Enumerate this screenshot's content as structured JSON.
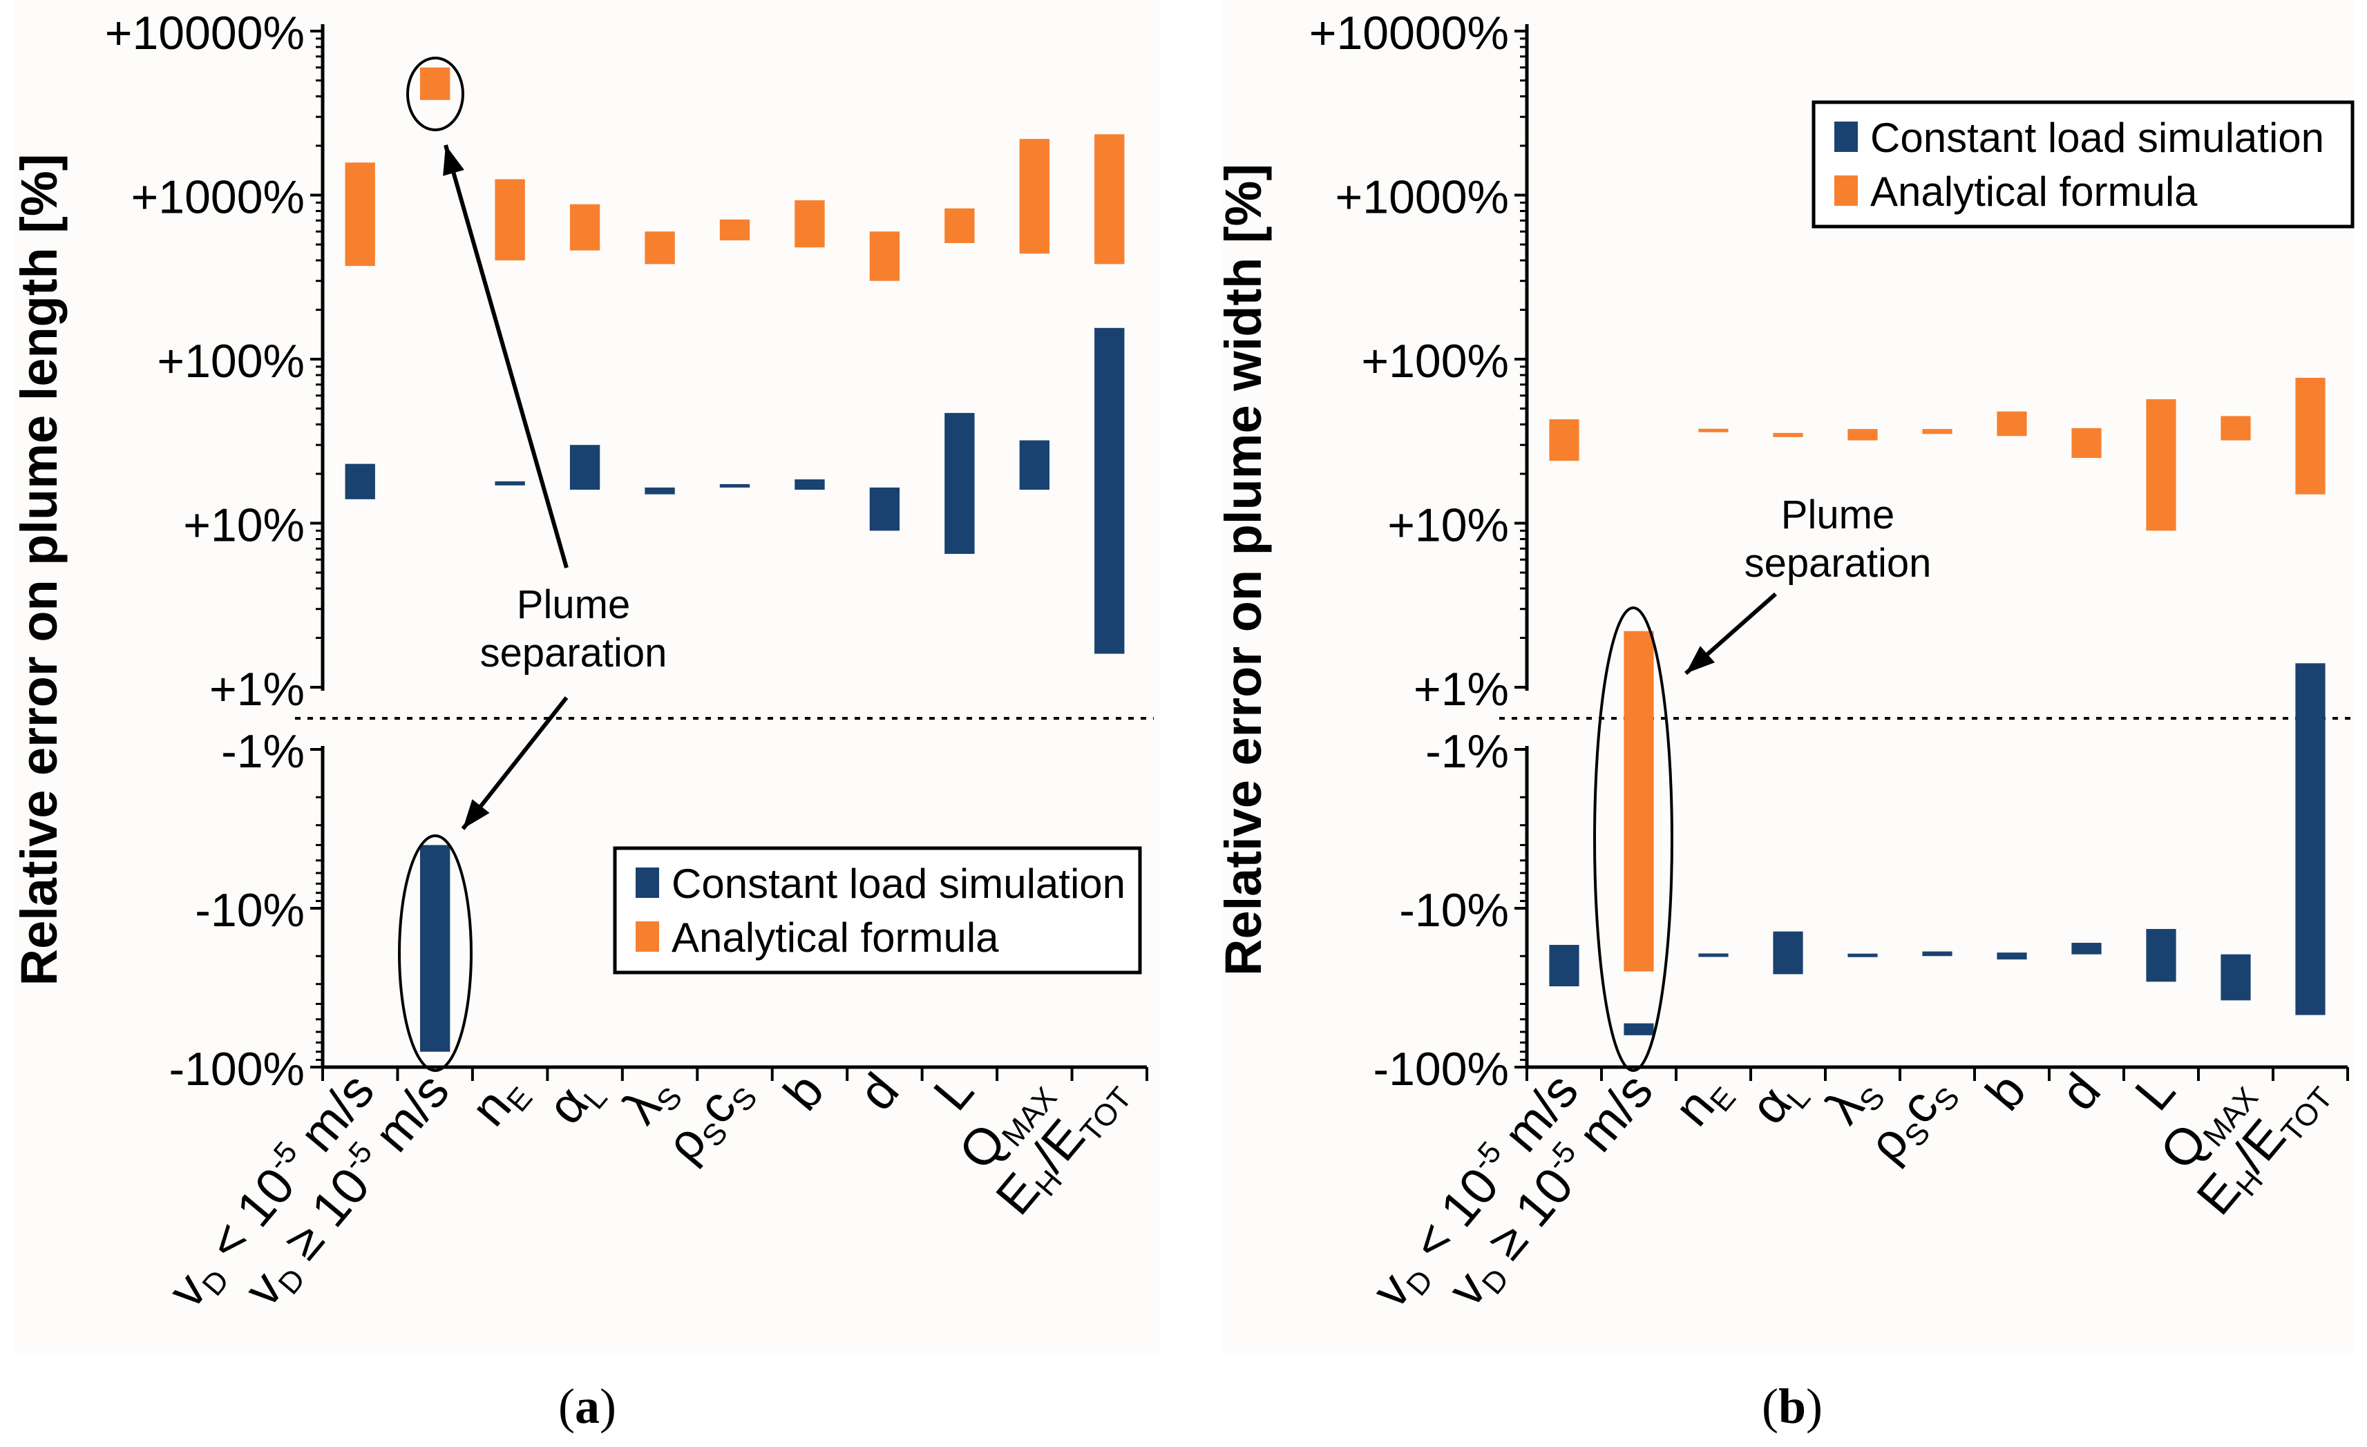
{
  "colors": {
    "constant": "#1a4270",
    "analytical": "#f7802f",
    "axis": "#000000",
    "panel_bg": "#fdfcfa"
  },
  "chart_data": [
    {
      "type": "bar",
      "subtype": "floating-range",
      "panel": "a",
      "caption": {
        "open": "(",
        "letter": "a",
        "close": ")"
      },
      "ylabel": "Relative error on plume length [%]",
      "yscale": "symmetric-log (positive and negative decades, split at 0 by a dotted line)",
      "ylim": [
        -100,
        10000
      ],
      "positive_ticks": [
        "+1%",
        "+10%",
        "+100%",
        "+1000%",
        "+10000%"
      ],
      "negative_ticks": [
        "-1%",
        "-10%",
        "-100%"
      ],
      "categories": [
        {
          "base": "v",
          "sub": "D",
          "rest": " < 10",
          "sup": "-5",
          "tail": " m/s"
        },
        {
          "base": "v",
          "sub": "D",
          "rest": " ≥ 10",
          "sup": "-5",
          "tail": " m/s"
        },
        {
          "base": "n",
          "sub": "E"
        },
        {
          "base": "α",
          "sub": "L"
        },
        {
          "base": "λ",
          "sub": "S"
        },
        {
          "base": "ρ",
          "sub": "S",
          "rest": "c",
          "sub2": "S"
        },
        {
          "base": "b"
        },
        {
          "base": "d"
        },
        {
          "base": "L"
        },
        {
          "base": "Q",
          "sub": "MAX"
        },
        {
          "base": "E",
          "sub": "H",
          "rest": "/E",
          "sub2": "TOT"
        }
      ],
      "series": [
        {
          "name": "Constant load simulation",
          "ranges": [
            [
              14,
              23
            ],
            [
              -4,
              -80
            ],
            [
              17,
              18
            ],
            [
              16,
              30
            ],
            [
              15,
              16.5
            ],
            [
              16.6,
              17.2
            ],
            [
              16,
              18.5
            ],
            [
              9,
              16.5
            ],
            [
              6.5,
              47
            ],
            [
              16,
              32
            ],
            [
              1.6,
              155
            ]
          ]
        },
        {
          "name": "Analytical formula",
          "ranges": [
            [
              370,
              1580
            ],
            [
              3800,
              6000
            ],
            [
              400,
              1250
            ],
            [
              460,
              880
            ],
            [
              380,
              600
            ],
            [
              530,
              710
            ],
            [
              480,
              930
            ],
            [
              300,
              600
            ],
            [
              510,
              830
            ],
            [
              440,
              2200
            ],
            [
              380,
              2350
            ]
          ]
        }
      ],
      "legend": {
        "position": "lower-right",
        "entries": [
          "Constant load simulation",
          "Analytical formula"
        ]
      },
      "annotation": {
        "line1": "Plume",
        "line2": "separation",
        "marks": "category 2 bars (circled)"
      }
    },
    {
      "type": "bar",
      "subtype": "floating-range",
      "panel": "b",
      "caption": {
        "open": "(",
        "letter": "b",
        "close": ")"
      },
      "ylabel": "Relative error on plume width [%]",
      "yscale": "symmetric-log (positive and negative decades, split at 0 by a dotted line)",
      "ylim": [
        -100,
        10000
      ],
      "positive_ticks": [
        "+1%",
        "+10%",
        "+100%",
        "+1000%",
        "+10000%"
      ],
      "negative_ticks": [
        "-1%",
        "-10%",
        "-100%"
      ],
      "categories": [
        {
          "base": "v",
          "sub": "D",
          "rest": " < 10",
          "sup": "-5",
          "tail": " m/s"
        },
        {
          "base": "v",
          "sub": "D",
          "rest": " ≥ 10",
          "sup": "-5",
          "tail": " m/s"
        },
        {
          "base": "n",
          "sub": "E"
        },
        {
          "base": "α",
          "sub": "L"
        },
        {
          "base": "λ",
          "sub": "S"
        },
        {
          "base": "ρ",
          "sub": "S",
          "rest": "c",
          "sub2": "S"
        },
        {
          "base": "b"
        },
        {
          "base": "d"
        },
        {
          "base": "L"
        },
        {
          "base": "Q",
          "sub": "MAX"
        },
        {
          "base": "E",
          "sub": "H",
          "rest": "/E",
          "sub2": "TOT"
        }
      ],
      "series": [
        {
          "name": "Constant load simulation",
          "ranges": [
            [
              -17,
              -31
            ],
            [
              -53,
              -63
            ],
            [
              -19.3,
              -20.2
            ],
            [
              -14,
              -26
            ],
            [
              -19.3,
              -20.3
            ],
            [
              -18.7,
              -20
            ],
            [
              -19,
              -21
            ],
            [
              -16.5,
              -19.5
            ],
            [
              -13.5,
              -29
            ],
            [
              -19.5,
              -38
            ],
            [
              1.4,
              -47
            ]
          ]
        },
        {
          "name": "Analytical formula",
          "ranges": [
            [
              24,
              43
            ],
            [
              2.2,
              -25
            ],
            [
              36,
              37.5
            ],
            [
              33.5,
              35.5
            ],
            [
              32,
              37.5
            ],
            [
              35,
              37.5
            ],
            [
              34,
              48
            ],
            [
              25,
              38
            ],
            [
              9,
              57
            ],
            [
              32,
              45
            ],
            [
              15,
              77
            ]
          ]
        }
      ],
      "legend": {
        "position": "top-right",
        "entries": [
          "Constant load simulation",
          "Analytical formula"
        ]
      },
      "annotation": {
        "line1": "Plume",
        "line2": "separation",
        "marks": "category 2 bars (circled)"
      }
    }
  ]
}
